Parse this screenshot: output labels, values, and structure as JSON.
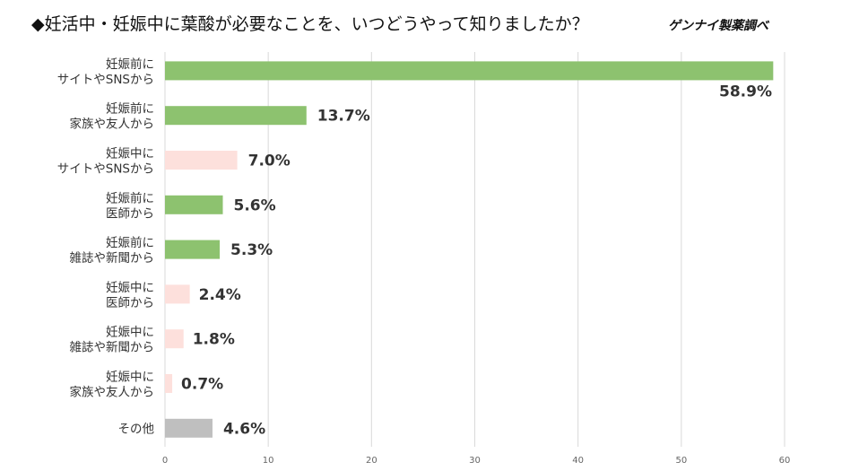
{
  "title": "◆妊活中・妊娠中に葉酸が必要なことを、いつどうやって知りましたか？",
  "source": "ゲンナイ製薬調べ",
  "chart_data": {
    "type": "bar",
    "orientation": "horizontal",
    "categories": [
      [
        "妊娠前に",
        "サイトやSNSから"
      ],
      [
        "妊娠前に",
        "家族や友人から"
      ],
      [
        "妊娠中に",
        "サイトやSNSから"
      ],
      [
        "妊娠前に",
        "医師から"
      ],
      [
        "妊娠前に",
        "雑誌や新聞から"
      ],
      [
        "妊娠中に",
        "医師から"
      ],
      [
        "妊娠中に",
        "雑誌や新聞から"
      ],
      [
        "妊娠中に",
        "家族や友人から"
      ],
      [
        "その他"
      ]
    ],
    "values": [
      58.9,
      13.7,
      7.0,
      5.6,
      5.3,
      2.4,
      1.8,
      0.7,
      4.6
    ],
    "value_labels": [
      "58.9%",
      "13.7%",
      "7.0%",
      "5.6%",
      "5.3%",
      "2.4%",
      "1.8%",
      "0.7%",
      "4.6%"
    ],
    "bar_colors": [
      "#8dc26f",
      "#8dc26f",
      "#fde0dc",
      "#8dc26f",
      "#8dc26f",
      "#fde0dc",
      "#fde0dc",
      "#fde0dc",
      "#bfbfbf"
    ],
    "xlim": [
      0,
      60
    ],
    "xticks": [
      0,
      10,
      20,
      30,
      40,
      50,
      60
    ],
    "grid": true
  }
}
